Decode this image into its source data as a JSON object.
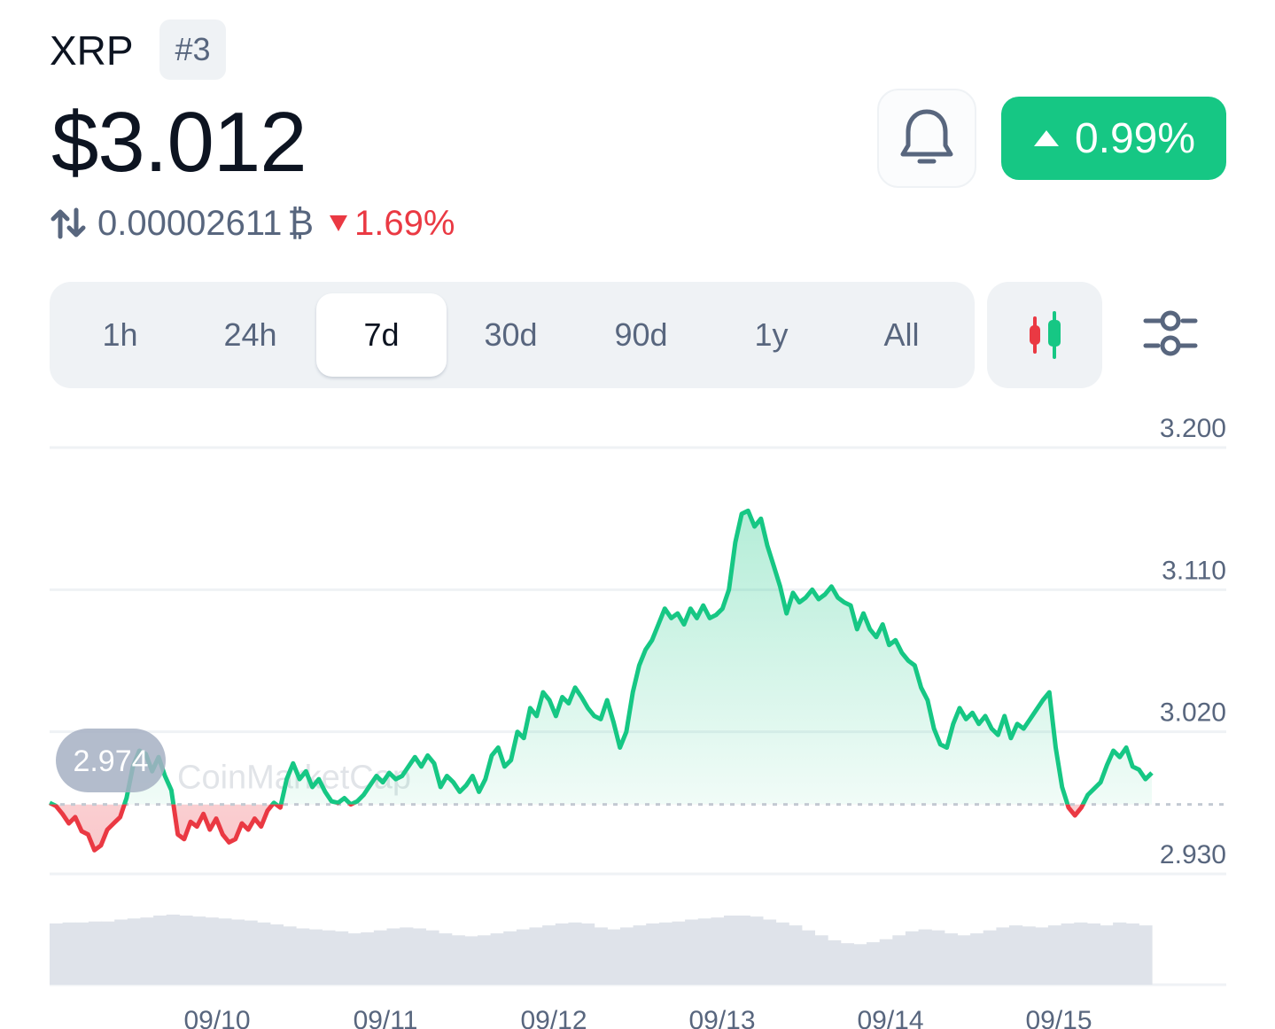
{
  "header": {
    "coin_name": "XRP",
    "rank": "#3",
    "price": "$3.012",
    "btc_price": "0.00002611",
    "btc_symbol": "₿",
    "btc_change": "1.69%",
    "change_24h": "0.99%",
    "change_24h_color": "#16c784",
    "btc_change_color": "#ea3943"
  },
  "icons": {
    "swap": "swap-arrows-icon",
    "bell": "bell-icon",
    "candles": "candlestick-icon",
    "settings": "sliders-icon",
    "up": "triangle-up-icon",
    "down": "triangle-down-icon"
  },
  "range_tabs": [
    {
      "label": "1h",
      "active": false
    },
    {
      "label": "24h",
      "active": false
    },
    {
      "label": "7d",
      "active": true
    },
    {
      "label": "30d",
      "active": false
    },
    {
      "label": "90d",
      "active": false
    },
    {
      "label": "1y",
      "active": false
    },
    {
      "label": "All",
      "active": false
    }
  ],
  "chart_data": {
    "type": "line",
    "title": "",
    "xlabel": "",
    "ylabel": "",
    "y_ticks": [
      "3.200",
      "3.110",
      "3.020",
      "2.930"
    ],
    "ylim": [
      2.93,
      3.2
    ],
    "x_ticks": [
      "09/10",
      "09/11",
      "09/12",
      "09/13",
      "09/14",
      "09/15"
    ],
    "baseline": 2.974,
    "baseline_label": "2.974",
    "watermark": "CoinMarketCap",
    "up_color": "#16c784",
    "down_color": "#ea3943",
    "grid": true,
    "series": [
      {
        "values": [
          2.975,
          2.973,
          2.968,
          2.962,
          2.966,
          2.957,
          2.955,
          2.945,
          2.948,
          2.958,
          2.962,
          2.966,
          2.978,
          2.998,
          3.008,
          3.006,
          2.995,
          3.004,
          2.992,
          2.983,
          2.955,
          2.952,
          2.963,
          2.96,
          2.968,
          2.958,
          2.965,
          2.955,
          2.95,
          2.952,
          2.962,
          2.958,
          2.965,
          2.96,
          2.97,
          2.975,
          2.972,
          2.99,
          3.0,
          2.99,
          2.995,
          2.985,
          2.99,
          2.982,
          2.976,
          2.975,
          2.978,
          2.974,
          2.976,
          2.98,
          2.986,
          2.992,
          2.988,
          2.994,
          2.99,
          2.992,
          2.998,
          3.004,
          2.998,
          3.005,
          3.0,
          2.985,
          2.992,
          2.988,
          2.982,
          2.986,
          2.992,
          2.982,
          2.99,
          3.005,
          3.01,
          2.998,
          3.002,
          3.02,
          3.016,
          3.035,
          3.03,
          3.045,
          3.04,
          3.03,
          3.042,
          3.038,
          3.048,
          3.042,
          3.035,
          3.03,
          3.028,
          3.04,
          3.026,
          3.01,
          3.02,
          3.045,
          3.062,
          3.072,
          3.078,
          3.088,
          3.098,
          3.092,
          3.095,
          3.088,
          3.098,
          3.092,
          3.1,
          3.092,
          3.094,
          3.098,
          3.11,
          3.14,
          3.158,
          3.16,
          3.15,
          3.155,
          3.138,
          3.125,
          3.112,
          3.095,
          3.108,
          3.102,
          3.105,
          3.11,
          3.104,
          3.107,
          3.112,
          3.105,
          3.102,
          3.1,
          3.085,
          3.095,
          3.085,
          3.08,
          3.088,
          3.075,
          3.078,
          3.07,
          3.065,
          3.062,
          3.048,
          3.04,
          3.022,
          3.012,
          3.01,
          3.025,
          3.035,
          3.028,
          3.032,
          3.025,
          3.03,
          3.022,
          3.018,
          3.03,
          3.016,
          3.025,
          3.022,
          3.028,
          3.034,
          3.04,
          3.045,
          3.01,
          2.985,
          2.972,
          2.967,
          2.972,
          2.98,
          2.984,
          2.988,
          2.999,
          3.008,
          3.004,
          3.01,
          2.998,
          2.996,
          2.99,
          2.994
        ]
      }
    ]
  },
  "volume_data": {
    "values": [
      0.62,
      0.63,
      0.63,
      0.64,
      0.64,
      0.66,
      0.67,
      0.68,
      0.7,
      0.71,
      0.7,
      0.69,
      0.68,
      0.67,
      0.66,
      0.65,
      0.63,
      0.61,
      0.59,
      0.57,
      0.56,
      0.55,
      0.54,
      0.52,
      0.53,
      0.55,
      0.57,
      0.58,
      0.57,
      0.55,
      0.52,
      0.5,
      0.49,
      0.5,
      0.52,
      0.54,
      0.56,
      0.58,
      0.6,
      0.62,
      0.63,
      0.62,
      0.58,
      0.56,
      0.58,
      0.6,
      0.62,
      0.63,
      0.64,
      0.66,
      0.67,
      0.68,
      0.7,
      0.7,
      0.69,
      0.66,
      0.63,
      0.6,
      0.55,
      0.5,
      0.45,
      0.42,
      0.41,
      0.43,
      0.46,
      0.5,
      0.54,
      0.56,
      0.55,
      0.52,
      0.5,
      0.52,
      0.55,
      0.58,
      0.6,
      0.59,
      0.58,
      0.6,
      0.62,
      0.63,
      0.62,
      0.6,
      0.63,
      0.62,
      0.6
    ]
  }
}
